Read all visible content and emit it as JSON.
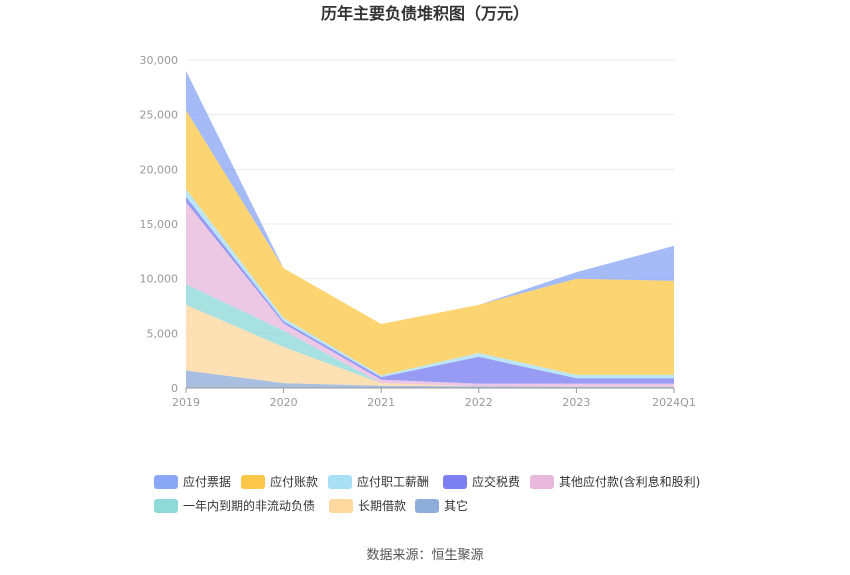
{
  "chart_data": {
    "type": "area",
    "stacked": true,
    "title": "历年主要负债堆积图（万元）",
    "categories": [
      "2019",
      "2020",
      "2021",
      "2022",
      "2023",
      "2024Q1"
    ],
    "ylim": [
      0,
      30000
    ],
    "yticks": [
      "0",
      "5,000",
      "10,000",
      "15,000",
      "20,000",
      "25,000",
      "30,000"
    ],
    "grid": true,
    "legend_position": "bottom",
    "series": [
      {
        "name": "其它",
        "color": "#8fadd9",
        "values": [
          1600,
          450,
          200,
          150,
          100,
          100
        ]
      },
      {
        "name": "长期借款",
        "color": "#fdd9a0",
        "values": [
          6000,
          3300,
          250,
          0,
          0,
          0
        ]
      },
      {
        "name": "一年内到期的非流动负债",
        "color": "#8fd9d9",
        "values": [
          1900,
          1500,
          0,
          0,
          0,
          0
        ]
      },
      {
        "name": "其他应付款(含利息和股利)",
        "color": "#e8b9dc",
        "values": [
          7500,
          650,
          300,
          250,
          300,
          300
        ]
      },
      {
        "name": "应交税费",
        "color": "#7b7ff0",
        "values": [
          500,
          200,
          250,
          2450,
          500,
          500
        ]
      },
      {
        "name": "应付职工薪酬",
        "color": "#a8dff5",
        "values": [
          700,
          300,
          150,
          350,
          300,
          300
        ]
      },
      {
        "name": "应付账款",
        "color": "#fdc84a",
        "values": [
          7200,
          4550,
          4700,
          4400,
          8800,
          8600
        ]
      },
      {
        "name": "应付票据",
        "color": "#8aa8f5",
        "values": [
          3600,
          0,
          0,
          0,
          600,
          3200
        ]
      }
    ],
    "source": "数据来源：恒生聚源"
  }
}
